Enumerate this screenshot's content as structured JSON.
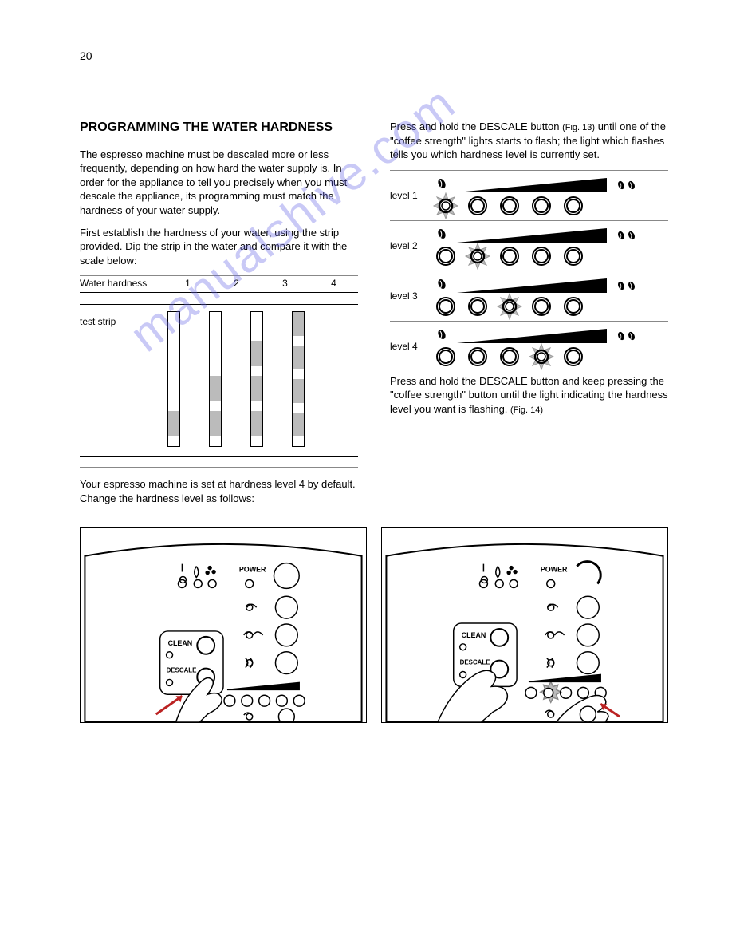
{
  "page_number": "20",
  "left": {
    "heading": "PROGRAMMING THE WATER HARDNESS",
    "p1": "The espresso machine must be descaled more or less frequently, depending on how hard the water supply is. In order for the appliance to tell you precisely when you must descale the appliance, its programming must match the hardness of your water supply.",
    "p2": "First establish the hardness of your water, using the strip provided. Dip the strip in the water and compare it with the scale below:",
    "table_header_left": "Water hardness",
    "table_cols": [
      "1",
      "2",
      "3",
      "4"
    ],
    "table_row_label": "test strip",
    "p3": "Your espresso machine is set at hardness level 4 by default. Change the hardness level as follows:"
  },
  "right": {
    "step1_a": "Press and hold the DESCALE button",
    "step1_b": "until one of the \"coffee strength\" lights starts to flash;",
    "step1_c": "the light which flashes tells you which hardness level is currently set.",
    "blink_ref": "(Fig. 13)",
    "step2": "Press and hold the DESCALE button and keep pressing the \"coffee strength\" button until the light indicating the hardness level you want is flashing.",
    "blink_ref2": "(Fig. 14)",
    "levels": [
      {
        "label": "level 1",
        "flash_index": 0
      },
      {
        "label": "level 2",
        "flash_index": 1
      },
      {
        "label": "level 3",
        "flash_index": 2
      },
      {
        "label": "level 4",
        "flash_index": 3
      }
    ]
  },
  "figs": {
    "f13": "Fig. 13",
    "f14": "Fig. 14",
    "labels": {
      "clean": "CLEAN",
      "descale": "DESCALE",
      "power": "POWER"
    }
  },
  "watermark": "manualshive.com",
  "colors": {
    "star": "#bdbdbd",
    "seg": "#bbbbbb",
    "hr": "#000000",
    "wm": "rgba(100,100,230,0.35)"
  }
}
